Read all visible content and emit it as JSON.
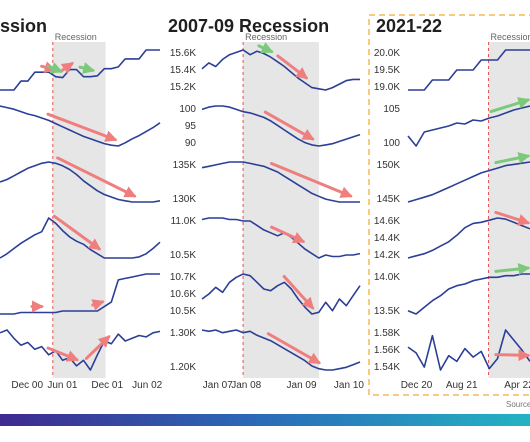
{
  "source_label": "Source",
  "colors": {
    "line": "#2b3f97",
    "shade": "#e6e6e6",
    "down_arrow": "#ef7f7f",
    "up_arrow": "#7cc97c",
    "recession_marker": "#e05555",
    "highlight_border": "#f3b85a",
    "bottom_bar": [
      "#3f2a8f",
      "#2a6cb8",
      "#24b3c3"
    ]
  },
  "chart_data": [
    {
      "type": "line",
      "title": "ssion",
      "shaded_label": "Recession",
      "x_ticks": [
        "Dec 00",
        "Jun 01",
        "Dec 01",
        "Jun 02"
      ],
      "rows": [
        {
          "y_ticks": [],
          "values": [
            1,
            1,
            1,
            2,
            2,
            3,
            3,
            3,
            2.5,
            2.4,
            3.3,
            3.3,
            2.5,
            2.5,
            2.6,
            3.4,
            3.4,
            3.6,
            4.5,
            4.5,
            4.5,
            5.5,
            5.5,
            5.5
          ],
          "arrows": [
            {
              "from": 0.26,
              "to": 0.34,
              "dir": "down"
            },
            {
              "from": 0.38,
              "to": 0.45,
              "dir": "down"
            },
            {
              "from": 0.3,
              "to": 0.38,
              "dir": "up"
            },
            {
              "from": 0.5,
              "to": 0.58,
              "dir": "up"
            }
          ]
        },
        {
          "y_ticks": [],
          "values": [
            7,
            6.8,
            6.6,
            6.3,
            6,
            5.8,
            5.5,
            5.2,
            4.8,
            4.4,
            4,
            3.6,
            3.2,
            2.9,
            2.6,
            2.3,
            2.1,
            2.0,
            2.4,
            2.9,
            3.3,
            3.8,
            4.3,
            4.9
          ],
          "arrows": [
            {
              "from": 0.3,
              "to": 0.72,
              "dir": "down"
            }
          ]
        },
        {
          "y_ticks": [],
          "values": [
            3,
            3.2,
            3.5,
            3.8,
            4.1,
            4.3,
            4.5,
            4.6,
            4.5,
            4.3,
            4.0,
            3.6,
            3.1,
            2.7,
            2.3,
            2.0,
            1.8,
            1.6,
            1.5,
            1.4,
            1.4,
            1.4,
            1.4,
            1.5
          ],
          "arrows": [
            {
              "from": 0.36,
              "to": 0.84,
              "dir": "down"
            }
          ]
        },
        {
          "y_ticks": [],
          "values": [
            1,
            1.4,
            1.9,
            2.4,
            2.8,
            3.2,
            3.5,
            4.8,
            4.3,
            3.6,
            3.0,
            2.6,
            2.3,
            1.8,
            1.4,
            1.0,
            1.0,
            1.0,
            1.0,
            1.0,
            1.1,
            1.4,
            1.9,
            2.5
          ],
          "arrows": [
            {
              "from": 0.34,
              "to": 0.62,
              "dir": "down"
            }
          ]
        },
        {
          "y_ticks": [],
          "values": [
            1.5,
            1.5,
            1.5,
            1.6,
            1.6,
            1.6,
            1.6,
            1.6,
            1.6,
            1.7,
            1.7,
            1.7,
            1.7,
            1.7,
            1.7,
            2.0,
            2.3,
            3.8,
            3.9,
            4.0,
            4.1,
            4.2,
            4.2,
            4.2
          ],
          "arrows": [
            {
              "from": 0.2,
              "to": 0.26,
              "dir": "down"
            },
            {
              "from": 0.58,
              "to": 0.64,
              "dir": "down"
            }
          ]
        },
        {
          "y_ticks": [],
          "values": [
            4,
            4.2,
            3.6,
            3.1,
            3.3,
            2.8,
            3.0,
            2.4,
            2.7,
            2.0,
            2.2,
            1.6,
            2.0,
            1.3,
            2.4,
            3.4,
            3.2,
            3.9,
            3.4,
            3.6,
            3.8,
            3.7,
            4.0,
            4.1
          ],
          "arrows": [
            {
              "from": 0.3,
              "to": 0.48,
              "dir": "down"
            },
            {
              "from": 0.54,
              "to": 0.68,
              "dir": "down"
            }
          ]
        }
      ]
    },
    {
      "type": "line",
      "title": "2007-09 Recession",
      "shaded_label": "Recession",
      "x_ticks": [
        "Jan 07",
        "Jan 08",
        "Jan 09",
        "Jan 10"
      ],
      "rows": [
        {
          "y_ticks": [
            "15.6K",
            "15.4K",
            "15.2K"
          ],
          "values": [
            3,
            3.5,
            3.2,
            3.8,
            4.2,
            4.4,
            4.6,
            4.2,
            4.5,
            4.3,
            4.0,
            3.6,
            3.2,
            2.7,
            2.2,
            1.8,
            1.4,
            1.3,
            1.2,
            1.4,
            1.7,
            2.0,
            2.1,
            2.1
          ],
          "arrows": [
            {
              "from": 0.36,
              "to": 0.44,
              "dir": "up"
            },
            {
              "from": 0.48,
              "to": 0.66,
              "dir": "down"
            }
          ]
        },
        {
          "y_ticks": [
            "100",
            "95",
            "90"
          ],
          "values": [
            5.0,
            5.2,
            5.3,
            5.3,
            5.2,
            5.0,
            4.8,
            4.7,
            4.5,
            4.3,
            4.0,
            3.6,
            3.2,
            2.8,
            2.4,
            2.1,
            1.9,
            1.8,
            1.9,
            2.0,
            2.2,
            2.4,
            2.6,
            2.8
          ],
          "arrows": [
            {
              "from": 0.4,
              "to": 0.7,
              "dir": "down"
            }
          ]
        },
        {
          "y_ticks": [
            "135K",
            "130K"
          ],
          "values": [
            4.2,
            4.3,
            4.4,
            4.5,
            4.6,
            4.6,
            4.6,
            4.5,
            4.4,
            4.3,
            4.1,
            3.9,
            3.6,
            3.3,
            3.0,
            2.7,
            2.4,
            2.2,
            2.0,
            1.9,
            1.8,
            1.8,
            1.8,
            1.8
          ],
          "arrows": [
            {
              "from": 0.44,
              "to": 0.94,
              "dir": "down"
            }
          ]
        },
        {
          "y_ticks": [
            "11.0K",
            "10.5K"
          ],
          "values": [
            4.6,
            4.7,
            4.7,
            4.7,
            4.6,
            4.6,
            4.5,
            4.5,
            4.2,
            3.9,
            3.7,
            3.5,
            3.7,
            3.4,
            3.0,
            2.6,
            2.3,
            2.0,
            2.2,
            2.1,
            2.1,
            2.2,
            2.2,
            2.3
          ],
          "arrows": [
            {
              "from": 0.44,
              "to": 0.64,
              "dir": "down"
            }
          ]
        },
        {
          "y_ticks": [
            "10.7K",
            "10.6K",
            "10.5K"
          ],
          "values": [
            2.6,
            2.9,
            3.3,
            3.0,
            3.6,
            3.9,
            4.1,
            4.0,
            3.6,
            3.2,
            3.1,
            3.4,
            3.6,
            3.2,
            2.6,
            2.1,
            1.7,
            1.8,
            2.4,
            1.9,
            2.6,
            2.2,
            2.8,
            3.4
          ],
          "arrows": [
            {
              "from": 0.52,
              "to": 0.7,
              "dir": "down"
            }
          ]
        },
        {
          "y_ticks": [
            "1.30K",
            "1.20K"
          ],
          "values": [
            4.6,
            4.5,
            4.6,
            4.4,
            4.5,
            4.6,
            4.4,
            4.5,
            4.2,
            4.0,
            3.8,
            3.5,
            3.2,
            2.9,
            2.6,
            2.3,
            1.9,
            1.7,
            1.6,
            1.6,
            1.7,
            1.8,
            2.0,
            2.2
          ],
          "arrows": [
            {
              "from": 0.42,
              "to": 0.74,
              "dir": "down"
            }
          ]
        }
      ]
    },
    {
      "type": "line",
      "title": "2021-22",
      "shaded_label": "Recession?",
      "x_ticks": [
        "Dec 20",
        "Aug 21",
        "Apr 22"
      ],
      "rows": [
        {
          "y_ticks": [
            "20.0K",
            "19.5K",
            "19.0K"
          ],
          "values": [
            1,
            1,
            1,
            2,
            2,
            2,
            3,
            3,
            3,
            4,
            4,
            4,
            5,
            5,
            5,
            5
          ],
          "arrows": []
        },
        {
          "y_ticks": [
            "105",
            "100"
          ],
          "values": [
            2.8,
            1.8,
            3.2,
            3.4,
            3.6,
            3.8,
            4.1,
            4.0,
            4.4,
            4.3,
            4.6,
            4.8,
            5.1,
            5.4,
            5.6,
            5.8
          ],
          "arrows": [
            {
              "from": 0.68,
              "to": 1.0,
              "dir": "up"
            }
          ]
        },
        {
          "y_ticks": [
            "150K",
            "145K"
          ],
          "values": [
            1.5,
            1.7,
            1.9,
            2.1,
            2.4,
            2.7,
            3.0,
            3.3,
            3.6,
            3.9,
            4.1,
            4.3,
            4.5,
            4.6,
            4.7,
            4.8
          ],
          "arrows": [
            {
              "from": 0.72,
              "to": 1.0,
              "dir": "up"
            }
          ]
        },
        {
          "y_ticks": [
            "14.6K",
            "14.4K",
            "14.2K"
          ],
          "values": [
            1.2,
            1.4,
            1.6,
            1.9,
            2.3,
            2.7,
            3.3,
            4.0,
            4.4,
            4.5,
            4.7,
            4.9,
            4.8,
            4.5,
            4.2,
            3.9
          ],
          "arrows": [
            {
              "from": 0.72,
              "to": 1.0,
              "dir": "down"
            }
          ]
        },
        {
          "y_ticks": [
            "14.0K",
            "13.5K"
          ],
          "values": [
            1.6,
            1.4,
            1.8,
            2.2,
            2.5,
            2.9,
            3.1,
            3.2,
            3.4,
            3.5,
            3.6,
            3.6,
            3.7,
            3.7,
            3.8,
            3.8
          ],
          "arrows": [
            {
              "from": 0.72,
              "to": 1.0,
              "dir": "up"
            }
          ]
        },
        {
          "y_ticks": [
            "1.58K",
            "1.56K",
            "1.54K"
          ],
          "values": [
            3.6,
            3.2,
            2.2,
            4.4,
            2.0,
            3.0,
            2.6,
            3.5,
            2.9,
            3.3,
            2.1,
            2.8,
            4.8,
            4.1,
            3.4,
            2.6
          ],
          "arrows": [
            {
              "from": 0.72,
              "to": 1.0,
              "dir": "down"
            }
          ]
        }
      ]
    }
  ]
}
